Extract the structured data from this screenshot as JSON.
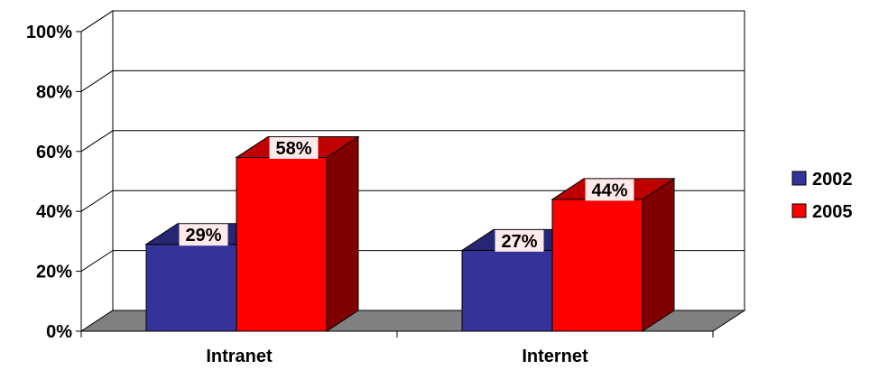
{
  "chart_data": {
    "type": "bar",
    "categories": [
      "Intranet",
      "Internet"
    ],
    "series": [
      {
        "name": "2002",
        "values": [
          29,
          27
        ],
        "labels": [
          "29%",
          "27%"
        ],
        "color": "#333399",
        "side_color": "#1a1a4d",
        "top_color": "#262673"
      },
      {
        "name": "2005",
        "values": [
          58,
          44
        ],
        "labels": [
          "58%",
          "44%"
        ],
        "color": "#ff0000",
        "side_color": "#800000",
        "top_color": "#c00000"
      }
    ],
    "ylim": [
      0,
      100
    ],
    "yticks": [
      "0%",
      "20%",
      "40%",
      "60%",
      "80%",
      "100%"
    ],
    "grid": true,
    "legend": "right",
    "three_d": true,
    "floor_color": "#808080",
    "data_label_bg": "#ffe9e9"
  }
}
